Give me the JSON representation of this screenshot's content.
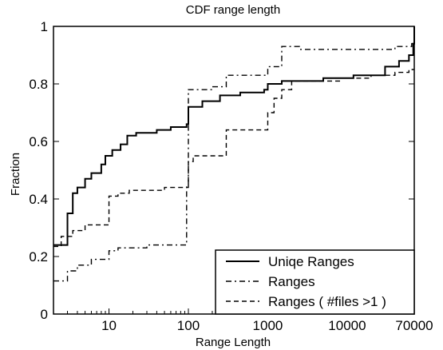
{
  "chart_data": {
    "type": "line",
    "title": "CDF range length",
    "xlabel": "Range Length",
    "ylabel": "Fraction",
    "xscale": "log",
    "xlim": [
      2,
      70000
    ],
    "ylim": [
      0,
      1
    ],
    "x_ticks": [
      {
        "value": 10,
        "label": "10"
      },
      {
        "value": 100,
        "label": "100"
      },
      {
        "value": 1000,
        "label": "1000"
      },
      {
        "value": 10000,
        "label": "10000"
      },
      {
        "value": 70000,
        "label": "70000"
      }
    ],
    "y_ticks": [
      {
        "value": 0,
        "label": "0"
      },
      {
        "value": 0.2,
        "label": "0.2"
      },
      {
        "value": 0.4,
        "label": "0.4"
      },
      {
        "value": 0.6,
        "label": "0.6"
      },
      {
        "value": 0.8,
        "label": "0.8"
      },
      {
        "value": 1,
        "label": "1"
      }
    ],
    "grid": false,
    "legend_position": "bottom-right",
    "series": [
      {
        "name": "Uniqe Ranges",
        "style": "solid",
        "color": "#000000",
        "points": [
          [
            2,
            0.24
          ],
          [
            3,
            0.24
          ],
          [
            3,
            0.35
          ],
          [
            3.5,
            0.35
          ],
          [
            3.5,
            0.42
          ],
          [
            4,
            0.42
          ],
          [
            4,
            0.44
          ],
          [
            5,
            0.44
          ],
          [
            5,
            0.47
          ],
          [
            6,
            0.47
          ],
          [
            6,
            0.49
          ],
          [
            8,
            0.49
          ],
          [
            8,
            0.52
          ],
          [
            9,
            0.52
          ],
          [
            9,
            0.55
          ],
          [
            11,
            0.55
          ],
          [
            11,
            0.57
          ],
          [
            14,
            0.57
          ],
          [
            14,
            0.59
          ],
          [
            17,
            0.59
          ],
          [
            17,
            0.62
          ],
          [
            22,
            0.62
          ],
          [
            22,
            0.63
          ],
          [
            40,
            0.63
          ],
          [
            40,
            0.64
          ],
          [
            60,
            0.64
          ],
          [
            60,
            0.65
          ],
          [
            95,
            0.65
          ],
          [
            95,
            0.66
          ],
          [
            100,
            0.66
          ],
          [
            100,
            0.72
          ],
          [
            150,
            0.72
          ],
          [
            150,
            0.74
          ],
          [
            250,
            0.74
          ],
          [
            250,
            0.76
          ],
          [
            450,
            0.76
          ],
          [
            450,
            0.77
          ],
          [
            900,
            0.77
          ],
          [
            900,
            0.78
          ],
          [
            1000,
            0.78
          ],
          [
            1000,
            0.8
          ],
          [
            1500,
            0.8
          ],
          [
            1500,
            0.81
          ],
          [
            5000,
            0.81
          ],
          [
            5000,
            0.82
          ],
          [
            12000,
            0.82
          ],
          [
            12000,
            0.83
          ],
          [
            30000,
            0.83
          ],
          [
            30000,
            0.86
          ],
          [
            45000,
            0.86
          ],
          [
            45000,
            0.88
          ],
          [
            60000,
            0.88
          ],
          [
            60000,
            0.9
          ],
          [
            68000,
            0.9
          ],
          [
            68000,
            0.94
          ],
          [
            70000,
            0.94
          ],
          [
            70000,
            1.0
          ]
        ]
      },
      {
        "name": "Ranges",
        "style": "dashdot",
        "color": "#000000",
        "points": [
          [
            2,
            0.115
          ],
          [
            3,
            0.115
          ],
          [
            3,
            0.15
          ],
          [
            4,
            0.15
          ],
          [
            4,
            0.17
          ],
          [
            6,
            0.17
          ],
          [
            6,
            0.19
          ],
          [
            10,
            0.19
          ],
          [
            10,
            0.22
          ],
          [
            13,
            0.22
          ],
          [
            13,
            0.23
          ],
          [
            30,
            0.23
          ],
          [
            30,
            0.24
          ],
          [
            95,
            0.24
          ],
          [
            95,
            0.45
          ],
          [
            100,
            0.45
          ],
          [
            100,
            0.78
          ],
          [
            200,
            0.78
          ],
          [
            200,
            0.79
          ],
          [
            300,
            0.79
          ],
          [
            300,
            0.83
          ],
          [
            1000,
            0.83
          ],
          [
            1000,
            0.86
          ],
          [
            1500,
            0.86
          ],
          [
            1500,
            0.93
          ],
          [
            2500,
            0.93
          ],
          [
            2500,
            0.92
          ],
          [
            40000,
            0.92
          ],
          [
            40000,
            0.93
          ],
          [
            65000,
            0.93
          ],
          [
            65000,
            0.94
          ],
          [
            70000,
            0.94
          ]
        ]
      },
      {
        "name": "Ranges ( #files >1 )",
        "style": "dashed",
        "color": "#000000",
        "points": [
          [
            2,
            0.235
          ],
          [
            2.5,
            0.235
          ],
          [
            2.5,
            0.27
          ],
          [
            3.5,
            0.27
          ],
          [
            3.5,
            0.29
          ],
          [
            5,
            0.29
          ],
          [
            5,
            0.31
          ],
          [
            10,
            0.31
          ],
          [
            10,
            0.41
          ],
          [
            13,
            0.41
          ],
          [
            13,
            0.42
          ],
          [
            18,
            0.42
          ],
          [
            18,
            0.43
          ],
          [
            50,
            0.43
          ],
          [
            50,
            0.44
          ],
          [
            100,
            0.44
          ],
          [
            100,
            0.53
          ],
          [
            115,
            0.53
          ],
          [
            115,
            0.55
          ],
          [
            300,
            0.55
          ],
          [
            300,
            0.64
          ],
          [
            1000,
            0.64
          ],
          [
            1000,
            0.7
          ],
          [
            1200,
            0.7
          ],
          [
            1200,
            0.75
          ],
          [
            1500,
            0.75
          ],
          [
            1500,
            0.78
          ],
          [
            2000,
            0.78
          ],
          [
            2000,
            0.81
          ],
          [
            8000,
            0.81
          ],
          [
            8000,
            0.82
          ],
          [
            20000,
            0.82
          ],
          [
            20000,
            0.83
          ],
          [
            40000,
            0.83
          ],
          [
            40000,
            0.84
          ],
          [
            60000,
            0.84
          ],
          [
            60000,
            0.85
          ],
          [
            70000,
            0.85
          ]
        ]
      }
    ]
  }
}
